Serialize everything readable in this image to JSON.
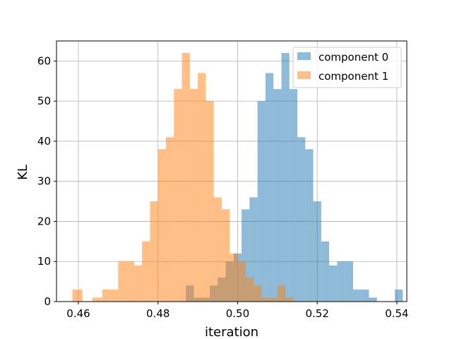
{
  "chart_data": {
    "type": "bar",
    "subtype": "histogram",
    "xlabel": "iteration",
    "ylabel": "KL",
    "xlim": [
      0.4545,
      0.5425
    ],
    "ylim": [
      0,
      65
    ],
    "xticks": [
      0.46,
      0.48,
      0.5,
      0.52,
      0.54
    ],
    "xtick_labels": [
      "0.46",
      "0.48",
      "0.50",
      "0.52",
      "0.54"
    ],
    "yticks": [
      0,
      10,
      20,
      30,
      40,
      50,
      60
    ],
    "ytick_labels": [
      "0",
      "10",
      "20",
      "30",
      "40",
      "50",
      "60"
    ],
    "grid": true,
    "legend_position": "top-right",
    "series": [
      {
        "name": "component 0",
        "color": "#1f77b4",
        "alpha": 0.5,
        "bins": [
          [
            0.487,
            0.489,
            4
          ],
          [
            0.489,
            0.491,
            1
          ],
          [
            0.491,
            0.493,
            1
          ],
          [
            0.493,
            0.495,
            4
          ],
          [
            0.495,
            0.497,
            6
          ],
          [
            0.497,
            0.499,
            10
          ],
          [
            0.499,
            0.501,
            12
          ],
          [
            0.501,
            0.503,
            23
          ],
          [
            0.503,
            0.505,
            26
          ],
          [
            0.505,
            0.507,
            50
          ],
          [
            0.507,
            0.509,
            57
          ],
          [
            0.509,
            0.511,
            53
          ],
          [
            0.511,
            0.513,
            62
          ],
          [
            0.513,
            0.515,
            53
          ],
          [
            0.515,
            0.517,
            41
          ],
          [
            0.517,
            0.519,
            38
          ],
          [
            0.519,
            0.521,
            25
          ],
          [
            0.521,
            0.523,
            15
          ],
          [
            0.523,
            0.525,
            9
          ],
          [
            0.525,
            0.527,
            10
          ],
          [
            0.527,
            0.529,
            10
          ],
          [
            0.529,
            0.531,
            3
          ],
          [
            0.531,
            0.533,
            3
          ],
          [
            0.533,
            0.535,
            1
          ],
          [
            0.5395,
            0.5415,
            3
          ]
        ]
      },
      {
        "name": "component 1",
        "color": "#ff7f0e",
        "alpha": 0.5,
        "bins": [
          [
            0.4585,
            0.461,
            3
          ],
          [
            0.4635,
            0.466,
            1
          ],
          [
            0.466,
            0.468,
            3
          ],
          [
            0.468,
            0.47,
            3
          ],
          [
            0.47,
            0.472,
            10
          ],
          [
            0.472,
            0.474,
            10
          ],
          [
            0.474,
            0.476,
            9
          ],
          [
            0.476,
            0.478,
            15
          ],
          [
            0.478,
            0.48,
            25
          ],
          [
            0.48,
            0.482,
            38
          ],
          [
            0.482,
            0.484,
            41
          ],
          [
            0.484,
            0.486,
            53
          ],
          [
            0.486,
            0.488,
            62
          ],
          [
            0.488,
            0.49,
            53
          ],
          [
            0.49,
            0.492,
            57
          ],
          [
            0.492,
            0.494,
            50
          ],
          [
            0.494,
            0.496,
            26
          ],
          [
            0.496,
            0.498,
            23
          ],
          [
            0.498,
            0.5,
            12
          ],
          [
            0.5,
            0.502,
            10
          ],
          [
            0.502,
            0.504,
            6
          ],
          [
            0.504,
            0.506,
            4
          ],
          [
            0.506,
            0.508,
            1
          ],
          [
            0.508,
            0.51,
            1
          ],
          [
            0.51,
            0.512,
            4
          ],
          [
            0.512,
            0.514,
            1
          ]
        ]
      }
    ]
  }
}
